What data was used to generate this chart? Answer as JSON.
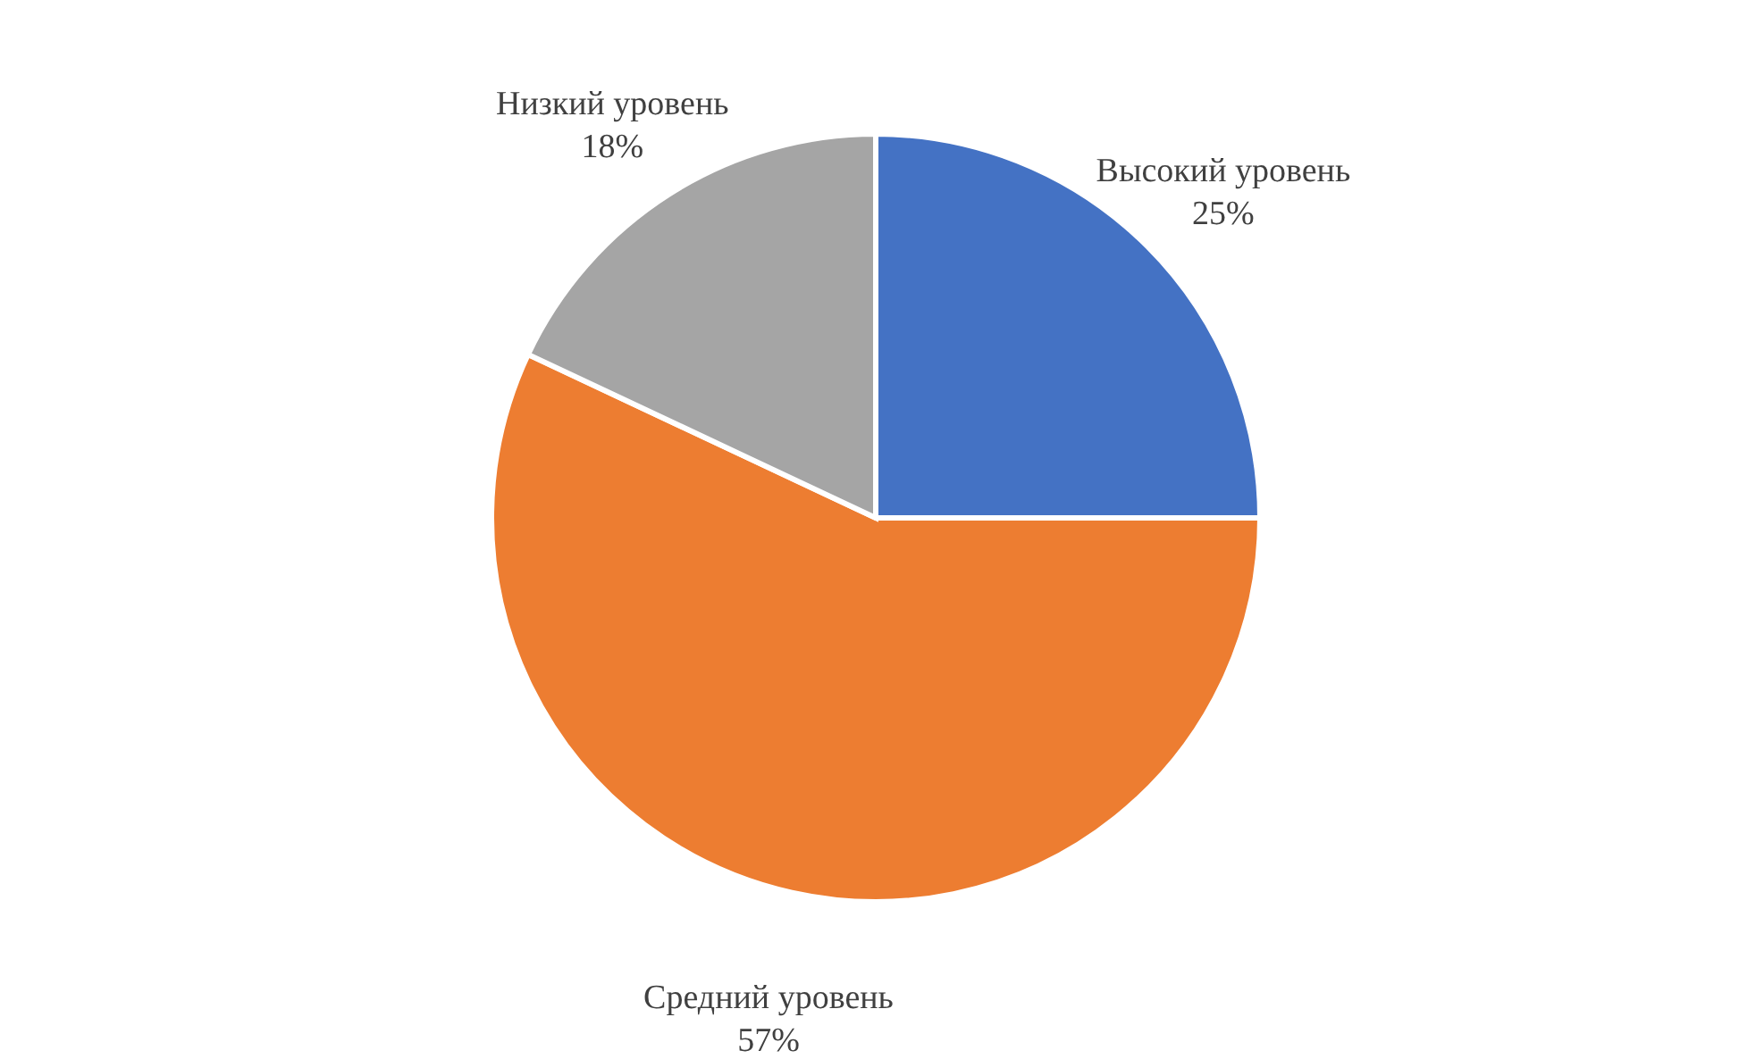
{
  "chart_data": {
    "type": "pie",
    "categories": [
      "Высокий уровень",
      "Средний уровень",
      "Низкий уровень"
    ],
    "values": [
      25,
      57,
      18
    ],
    "colors": [
      "#4472c4",
      "#ed7d31",
      "#a5a5a5"
    ],
    "value_labels": [
      "25%",
      "57%",
      "18%"
    ],
    "legend": false
  }
}
